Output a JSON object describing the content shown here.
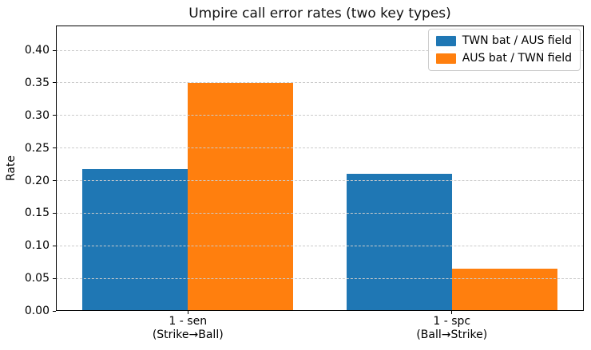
{
  "figure": {
    "title": "Umpire call error rates (two key types)"
  },
  "chart_data": {
    "type": "bar",
    "title": "Umpire call error rates (two key types)",
    "xlabel": "",
    "ylabel": "Rate",
    "categories": [
      {
        "line1": "1 - sen",
        "line2": "(Strike→Ball)"
      },
      {
        "line1": "1 - spc",
        "line2": "(Ball→Strike)"
      }
    ],
    "series": [
      {
        "name": "TWN bat / AUS field",
        "color": "#1f77b4",
        "values": [
          0.218,
          0.21
        ]
      },
      {
        "name": "AUS bat / TWN field",
        "color": "#ff7f0e",
        "values": [
          0.35,
          0.065
        ]
      }
    ],
    "yticks": [
      0.0,
      0.05,
      0.1,
      0.15,
      0.2,
      0.25,
      0.3,
      0.35,
      0.4
    ],
    "ylim": [
      0,
      0.438
    ],
    "xlim": [
      -0.5,
      1.5
    ],
    "bar_width": 0.4,
    "grid": true,
    "grid_style": "dashed",
    "grid_above_bars": true,
    "legend_position": "upper right",
    "colors": {
      "grid": "#cbcbcb",
      "frame": "#000000",
      "text": "#000000",
      "background": "#ffffff"
    }
  }
}
